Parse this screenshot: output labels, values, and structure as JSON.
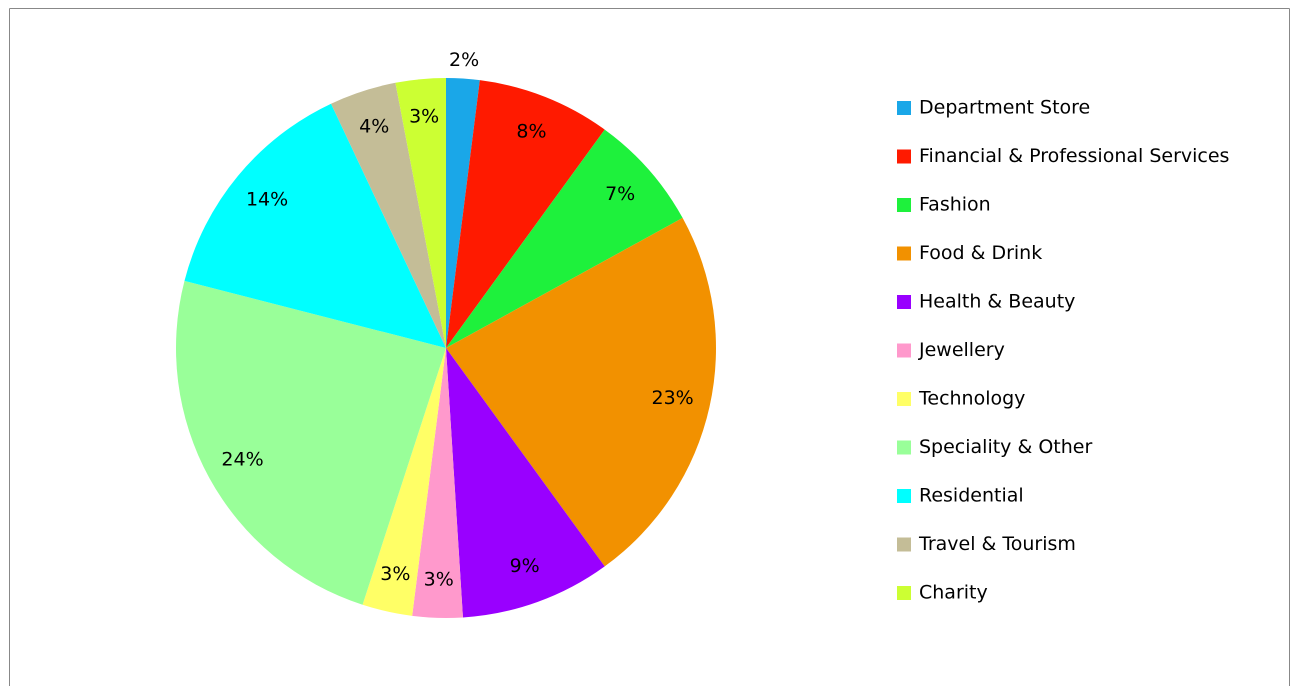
{
  "chart_data": {
    "type": "pie",
    "categories": [
      "Department Store",
      "Financial & Professional Services",
      "Fashion",
      "Food & Drink",
      "Health & Beauty",
      "Jewellery",
      "Technology",
      "Speciality & Other",
      "Residential",
      "Travel & Tourism",
      "Charity"
    ],
    "values": [
      2,
      8,
      7,
      23,
      9,
      3,
      3,
      24,
      14,
      4,
      3
    ],
    "value_labels": [
      "2%",
      "8%",
      "7%",
      "23%",
      "9%",
      "3%",
      "3%",
      "24%",
      "14%",
      "4%",
      "3%"
    ],
    "colors": [
      "#1aa7e8",
      "#ff1a00",
      "#1ef13c",
      "#f29100",
      "#9900ff",
      "#ff99cc",
      "#ffff66",
      "#99ff99",
      "#00ffff",
      "#c4bd97",
      "#ccff33"
    ],
    "legend": "right"
  }
}
